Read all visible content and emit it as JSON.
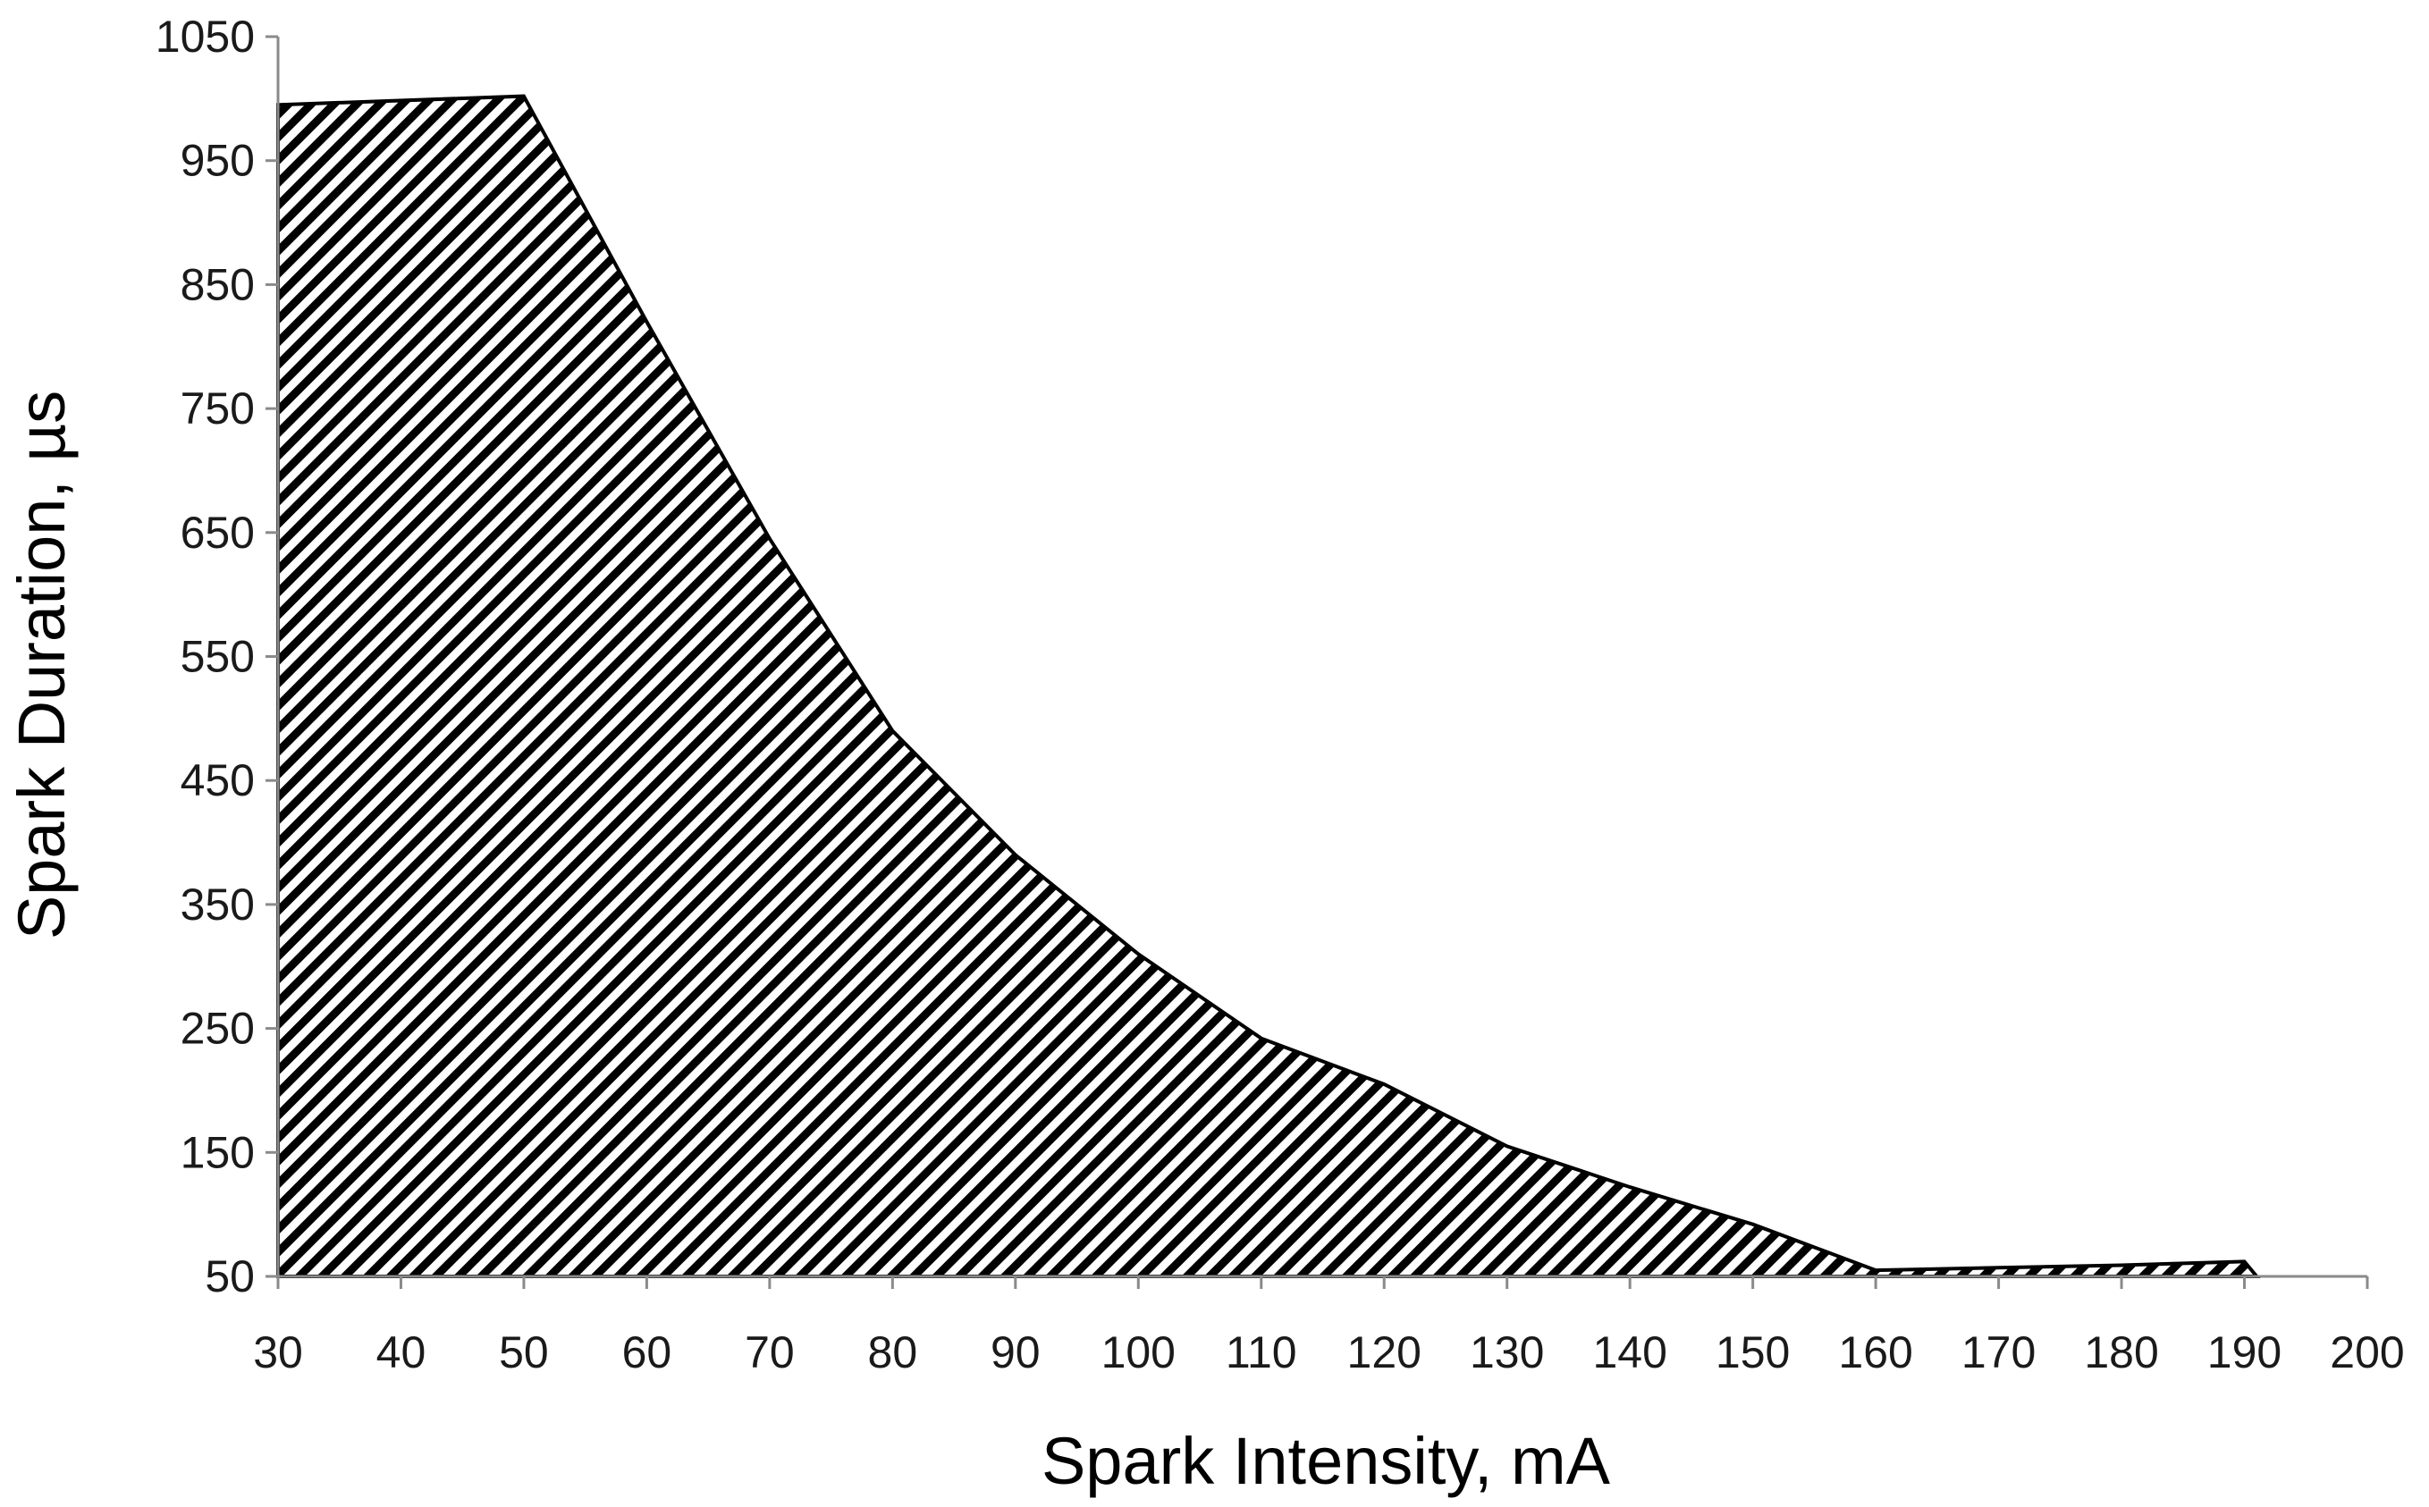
{
  "chart_data": {
    "type": "area",
    "title": "",
    "xlabel": "Spark Intensity, mA",
    "ylabel": "Spark Duration, µs",
    "x_ticks": [
      "30",
      "40",
      "50",
      "60",
      "70",
      "80",
      "90",
      "100",
      "110",
      "120",
      "130",
      "140",
      "150",
      "160",
      "170",
      "180",
      "190",
      "200"
    ],
    "y_ticks": [
      "50",
      "150",
      "250",
      "350",
      "450",
      "550",
      "650",
      "750",
      "850",
      "950",
      "1050"
    ],
    "xlim": [
      30,
      200
    ],
    "ylim": [
      50,
      1050
    ],
    "grid": false,
    "legend": "none",
    "fill_pattern": "diagonal-hatch",
    "colors": {
      "outline": "#000000",
      "hatch": "#000000",
      "axis": "#8a8a8a",
      "background": "#ffffff"
    },
    "series": [
      {
        "x": [
          30,
          50,
          60,
          70,
          80,
          90,
          100,
          110,
          120,
          130,
          140,
          150,
          160,
          170,
          180,
          190,
          191
        ],
        "y": [
          995,
          1002,
          820,
          645,
          490,
          390,
          310,
          242,
          205,
          155,
          122,
          92,
          55,
          57,
          59,
          62,
          50
        ]
      }
    ]
  }
}
